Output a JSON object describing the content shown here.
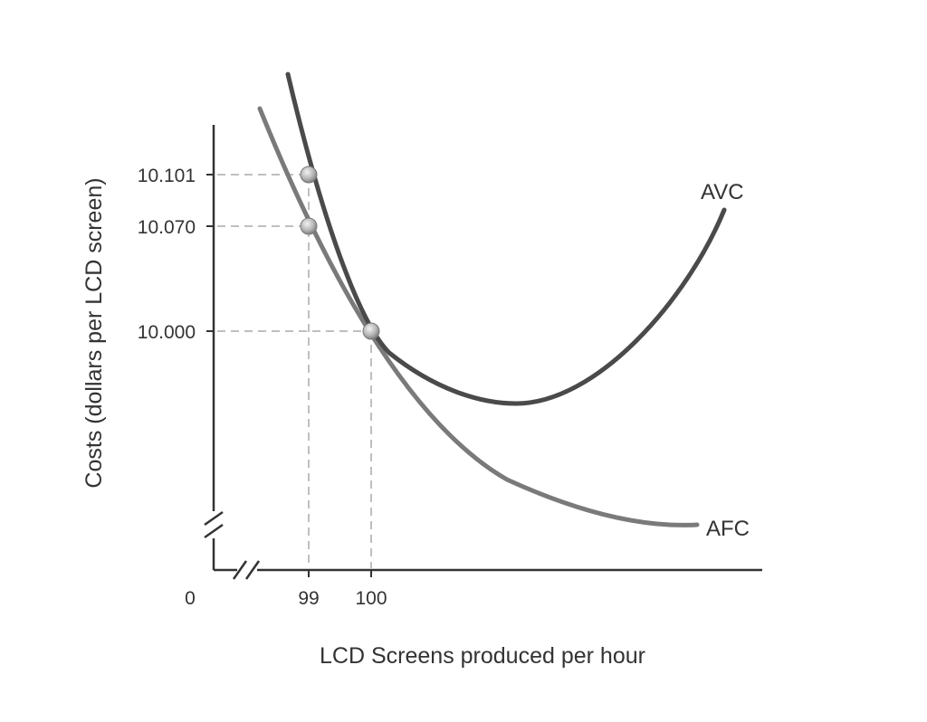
{
  "chart_data": {
    "type": "line",
    "title": "",
    "xlabel": "LCD Screens produced per hour",
    "ylabel": "Costs (dollars per LCD screen)",
    "x_axis_broken": true,
    "y_axis_broken": true,
    "origin_label": "0",
    "x_ticks": [
      {
        "value": 99,
        "label": "99"
      },
      {
        "value": 100,
        "label": "100"
      }
    ],
    "y_ticks": [
      {
        "value": 10.101,
        "label": "10.101"
      },
      {
        "value": 10.07,
        "label": "10.070"
      },
      {
        "value": 10.0,
        "label": "10.000"
      }
    ],
    "series": [
      {
        "name": "AVC",
        "color": "#4a4a4a"
      },
      {
        "name": "AFC",
        "color": "#7a7a7a"
      }
    ],
    "highlighted_points": [
      {
        "x": 99,
        "y": 10.101
      },
      {
        "x": 99,
        "y": 10.07
      },
      {
        "x": 100,
        "y": 10.0
      }
    ],
    "grid": false,
    "legend": "curve-labels"
  }
}
